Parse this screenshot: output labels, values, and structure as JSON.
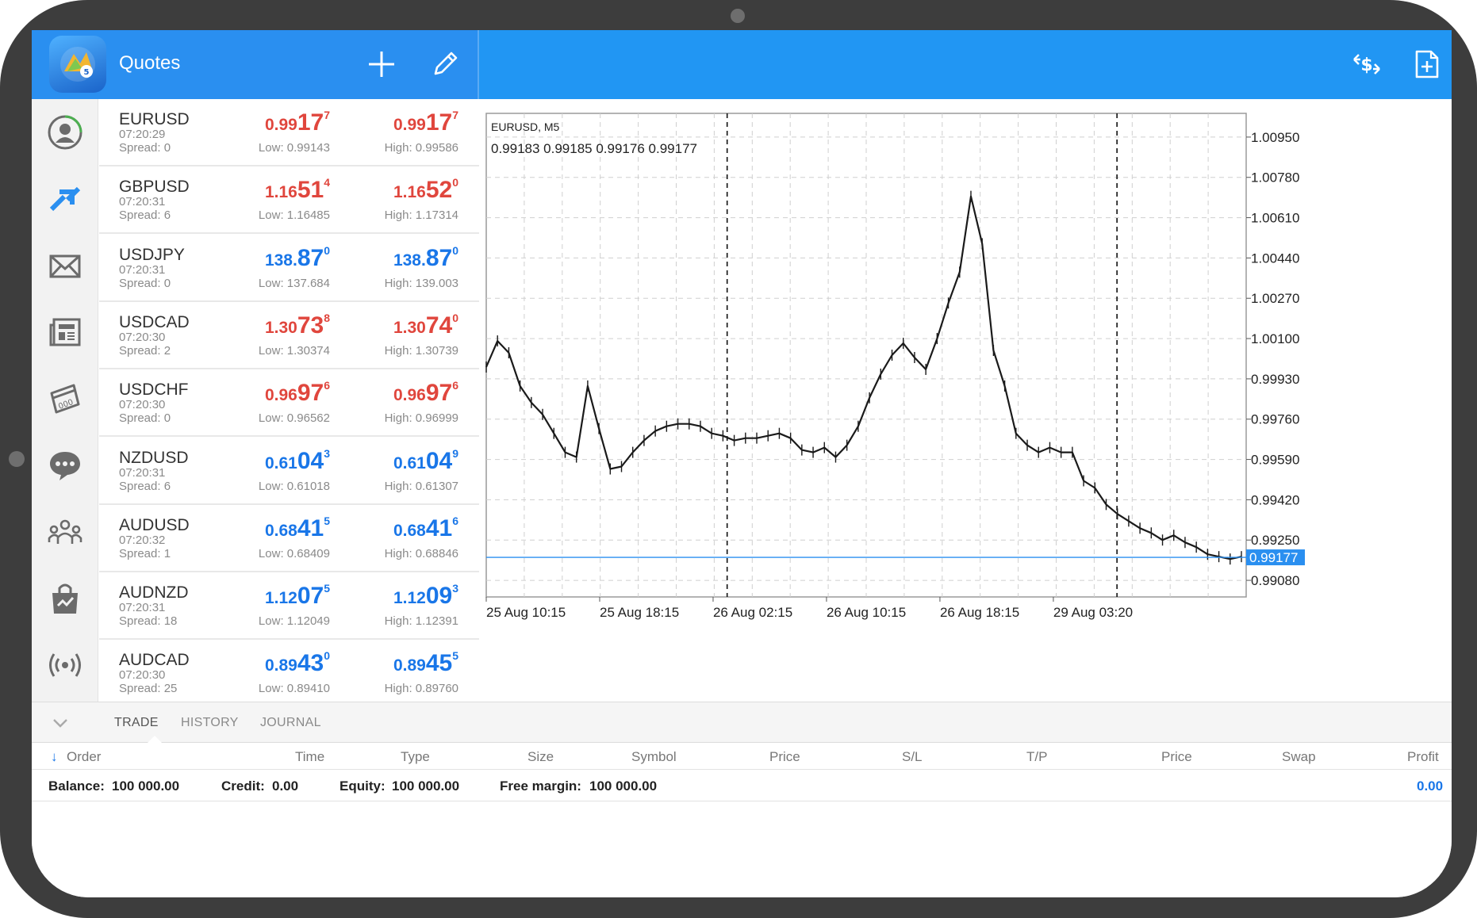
{
  "header": {
    "title": "Quotes"
  },
  "nav": [
    "account-icon",
    "trade-arrows-icon",
    "mail-icon",
    "news-icon",
    "calendar-icon",
    "chat-icon",
    "community-icon",
    "market-bag-icon",
    "signals-icon"
  ],
  "quotes": [
    {
      "symbol": "EURUSD",
      "time": "07:20:29",
      "spread": "Spread: 0",
      "bid": {
        "s": "0.99",
        "b": "17",
        "p": "7",
        "color": "red"
      },
      "ask": {
        "s": "0.99",
        "b": "17",
        "p": "7",
        "color": "red"
      },
      "low": "Low: 0.99143",
      "high": "High: 0.99586"
    },
    {
      "symbol": "GBPUSD",
      "time": "07:20:31",
      "spread": "Spread: 6",
      "bid": {
        "s": "1.16",
        "b": "51",
        "p": "4",
        "color": "red"
      },
      "ask": {
        "s": "1.16",
        "b": "52",
        "p": "0",
        "color": "red"
      },
      "low": "Low: 1.16485",
      "high": "High: 1.17314"
    },
    {
      "symbol": "USDJPY",
      "time": "07:20:31",
      "spread": "Spread: 0",
      "bid": {
        "s": "138.",
        "b": "87",
        "p": "0",
        "color": "blue"
      },
      "ask": {
        "s": "138.",
        "b": "87",
        "p": "0",
        "color": "blue"
      },
      "low": "Low: 137.684",
      "high": "High: 139.003"
    },
    {
      "symbol": "USDCAD",
      "time": "07:20:30",
      "spread": "Spread: 2",
      "bid": {
        "s": "1.30",
        "b": "73",
        "p": "8",
        "color": "red"
      },
      "ask": {
        "s": "1.30",
        "b": "74",
        "p": "0",
        "color": "red"
      },
      "low": "Low: 1.30374",
      "high": "High: 1.30739"
    },
    {
      "symbol": "USDCHF",
      "time": "07:20:30",
      "spread": "Spread: 0",
      "bid": {
        "s": "0.96",
        "b": "97",
        "p": "6",
        "color": "red"
      },
      "ask": {
        "s": "0.96",
        "b": "97",
        "p": "6",
        "color": "red"
      },
      "low": "Low: 0.96562",
      "high": "High: 0.96999"
    },
    {
      "symbol": "NZDUSD",
      "time": "07:20:31",
      "spread": "Spread: 6",
      "bid": {
        "s": "0.61",
        "b": "04",
        "p": "3",
        "color": "blue"
      },
      "ask": {
        "s": "0.61",
        "b": "04",
        "p": "9",
        "color": "blue"
      },
      "low": "Low: 0.61018",
      "high": "High: 0.61307"
    },
    {
      "symbol": "AUDUSD",
      "time": "07:20:32",
      "spread": "Spread: 1",
      "bid": {
        "s": "0.68",
        "b": "41",
        "p": "5",
        "color": "blue"
      },
      "ask": {
        "s": "0.68",
        "b": "41",
        "p": "6",
        "color": "blue"
      },
      "low": "Low: 0.68409",
      "high": "High: 0.68846"
    },
    {
      "symbol": "AUDNZD",
      "time": "07:20:31",
      "spread": "Spread: 18",
      "bid": {
        "s": "1.12",
        "b": "07",
        "p": "5",
        "color": "blue"
      },
      "ask": {
        "s": "1.12",
        "b": "09",
        "p": "3",
        "color": "blue"
      },
      "low": "Low: 1.12049",
      "high": "High: 1.12391"
    },
    {
      "symbol": "AUDCAD",
      "time": "07:20:30",
      "spread": "Spread: 25",
      "bid": {
        "s": "0.89",
        "b": "43",
        "p": "0",
        "color": "blue"
      },
      "ask": {
        "s": "0.89",
        "b": "45",
        "p": "5",
        "color": "blue"
      },
      "low": "Low: 0.89410",
      "high": "High: 0.89760"
    }
  ],
  "chart_data": {
    "type": "line",
    "title": "EURUSD, M5",
    "ohlc_label": "0.99183 0.99185 0.99176 0.99177",
    "current_price": "0.99177",
    "y_ticks": [
      "1.00950",
      "1.00780",
      "1.00610",
      "1.00440",
      "1.00270",
      "1.00100",
      "0.99930",
      "0.99760",
      "0.99590",
      "0.99420",
      "0.99250",
      "0.99080"
    ],
    "ylim": [
      0.9901,
      1.0105
    ],
    "x_ticks": [
      "25 Aug 10:15",
      "25 Aug 18:15",
      "26 Aug 02:15",
      "26 Aug 10:15",
      "26 Aug 18:15",
      "29 Aug 03:20"
    ],
    "series": [
      {
        "x_index": [
          0,
          4,
          8,
          12,
          16,
          20,
          24,
          28,
          32,
          36,
          40,
          44,
          48,
          52,
          56,
          60,
          64,
          68,
          72,
          76,
          80,
          84,
          88,
          92,
          96,
          100,
          104,
          108,
          112,
          116,
          120,
          124,
          128,
          132,
          136,
          140,
          144,
          148,
          152,
          156,
          160,
          164,
          168,
          172,
          176,
          180,
          184,
          188,
          192,
          196,
          200,
          204,
          208,
          212,
          216,
          220,
          224,
          228,
          232,
          236,
          240,
          244,
          248,
          252,
          256,
          260,
          264,
          268
        ],
        "values": [
          0.9998,
          1.0009,
          1.0004,
          0.999,
          0.9983,
          0.9978,
          0.997,
          0.9962,
          0.996,
          0.999,
          0.9972,
          0.9955,
          0.9956,
          0.9962,
          0.9967,
          0.9971,
          0.9973,
          0.9974,
          0.9974,
          0.9973,
          0.997,
          0.9969,
          0.9967,
          0.9968,
          0.9968,
          0.9969,
          0.997,
          0.9968,
          0.9963,
          0.9962,
          0.9964,
          0.996,
          0.9965,
          0.9973,
          0.9985,
          0.9995,
          1.0003,
          1.0008,
          1.0002,
          0.9997,
          1.001,
          1.0025,
          1.0038,
          1.007,
          1.005,
          1.0005,
          0.999,
          0.997,
          0.9965,
          0.9962,
          0.9964,
          0.9962,
          0.9962,
          0.995,
          0.9947,
          0.994,
          0.9936,
          0.9933,
          0.993,
          0.9928,
          0.9925,
          0.9927,
          0.9924,
          0.9922,
          0.9919,
          0.9918,
          0.9917,
          0.9918
        ]
      }
    ]
  },
  "bottom": {
    "tabs": [
      "TRADE",
      "HISTORY",
      "JOURNAL"
    ],
    "columns": [
      "Order",
      "Time",
      "Type",
      "Size",
      "Symbol",
      "Price",
      "S/L",
      "T/P",
      "Price",
      "Swap",
      "Profit"
    ],
    "balance_label": "Balance:",
    "balance": "100 000.00",
    "credit_label": "Credit:",
    "credit": "0.00",
    "equity_label": "Equity:",
    "equity": "100 000.00",
    "free_margin_label": "Free margin:",
    "free_margin": "100 000.00",
    "profit": "0.00"
  }
}
